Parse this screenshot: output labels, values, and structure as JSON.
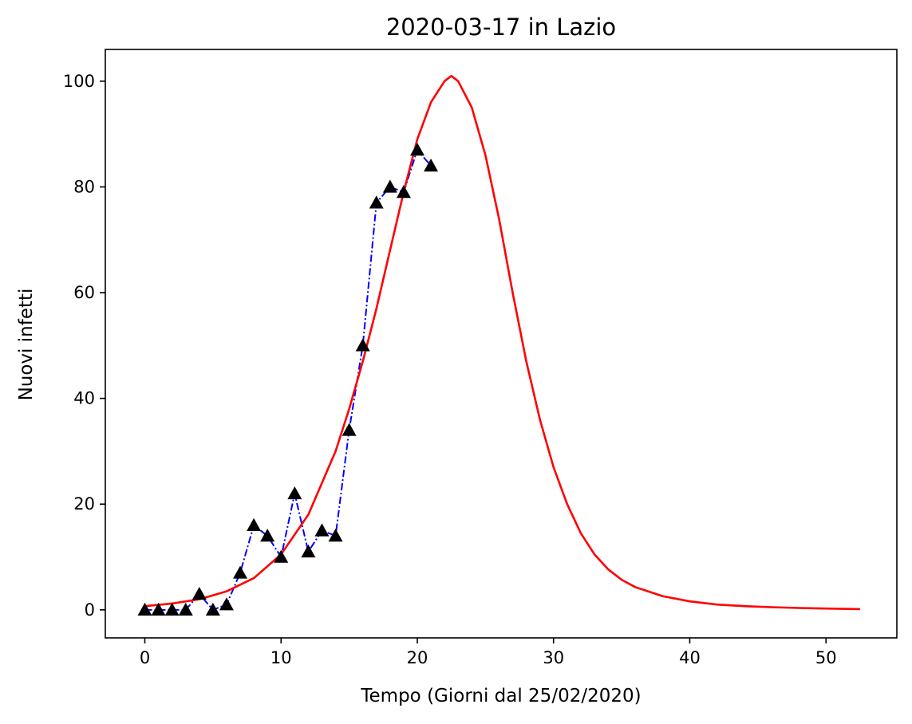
{
  "chart_data": {
    "type": "line",
    "title": "2020-03-17 in Lazio",
    "xlabel": "Tempo (Giorni dal 25/02/2020)",
    "ylabel": "Nuovi infetti",
    "xlim": [
      -2.9,
      55.2
    ],
    "ylim": [
      -5.3,
      106.0
    ],
    "xticks": [
      0,
      10,
      20,
      30,
      40,
      50
    ],
    "yticks": [
      0,
      20,
      40,
      60,
      80,
      100
    ],
    "grid": false,
    "series": [
      {
        "style": "dash-dot line with triangle markers",
        "color": "#0000ff",
        "marker_color": "#000000",
        "x": [
          0,
          1,
          2,
          3,
          4,
          5,
          6,
          7,
          8,
          9,
          10,
          11,
          12,
          13,
          14,
          15,
          16,
          17,
          18,
          19,
          20,
          21
        ],
        "y": [
          0,
          0,
          0,
          0,
          3,
          0,
          1,
          7,
          16,
          14,
          10,
          22,
          11,
          15,
          14,
          34,
          50,
          77,
          80,
          79,
          87,
          84
        ]
      },
      {
        "style": "solid line",
        "color": "#ff0000",
        "x": [
          0,
          2,
          4,
          6,
          8,
          10,
          12,
          14,
          15,
          16,
          17,
          18,
          19,
          20,
          21,
          22,
          22.5,
          23,
          24,
          25,
          26,
          27,
          28,
          29,
          30,
          31,
          32,
          33,
          34,
          35,
          36,
          38,
          40,
          42,
          44,
          46,
          48,
          50,
          52.5
        ],
        "y": [
          0.7,
          1.2,
          2.0,
          3.5,
          6,
          10.5,
          18,
          30,
          38,
          47,
          57,
          68,
          79,
          89,
          96,
          100,
          101,
          100,
          95,
          86,
          74,
          60,
          47,
          36,
          27,
          20,
          14.5,
          10.5,
          7.7,
          5.7,
          4.3,
          2.6,
          1.6,
          1.0,
          0.7,
          0.5,
          0.35,
          0.25,
          0.15
        ]
      }
    ]
  }
}
